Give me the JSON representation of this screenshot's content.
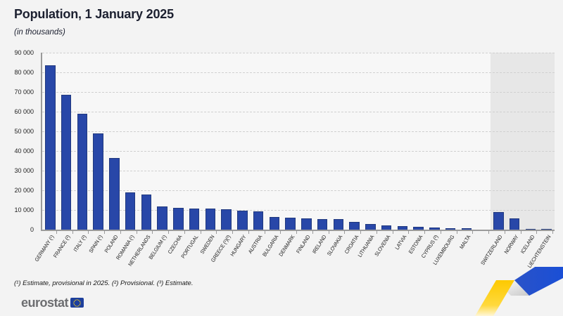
{
  "header": {
    "title": "Population, 1 January 2025",
    "subtitle": "(in thousands)"
  },
  "footnote": "(¹) Estimate, provisional in 2025. (²) Provisional. (³) Estimate.",
  "logo": {
    "text": "eurostat"
  },
  "colors": {
    "bar_fill": "#2847a8",
    "bar_border": "#21397e",
    "efta_background": "#e7e7e7",
    "gridline": "#d0d0d0",
    "axis": "#9a9a9a",
    "page_background": "#f3f3f3",
    "ribbon_yellow": "#ffd617",
    "ribbon_blue": "#1a4fd6",
    "logo_blue": "#1d3f9c",
    "logo_gray": "#6d6e71"
  },
  "chart_data": {
    "type": "bar",
    "title": "Population, 1 January 2025",
    "ylabel": "",
    "xlabel": "",
    "unit": "thousands",
    "ylim": [
      0,
      90000
    ],
    "ytick_step": 10000,
    "yticks": [
      {
        "value": 0,
        "label": "0"
      },
      {
        "value": 10000,
        "label": "10 000"
      },
      {
        "value": 20000,
        "label": "20 000"
      },
      {
        "value": 30000,
        "label": "30 000"
      },
      {
        "value": 40000,
        "label": "40 000"
      },
      {
        "value": 50000,
        "label": "50 000"
      },
      {
        "value": 60000,
        "label": "60 000"
      },
      {
        "value": 70000,
        "label": "70 000"
      },
      {
        "value": 80000,
        "label": "80 000"
      },
      {
        "value": 90000,
        "label": "90 000"
      }
    ],
    "grid": "horizontal-dashed",
    "legend": "none",
    "note": "EFTA countries shown on shaded background, separated from EU countries by an empty slot",
    "bars": [
      {
        "label": "GERMANY (¹)",
        "value": 83577,
        "group": "eu"
      },
      {
        "label": "FRANCE (²)",
        "value": 68606,
        "group": "eu"
      },
      {
        "label": "ITALY (²)",
        "value": 58934,
        "group": "eu"
      },
      {
        "label": "SPAIN (¹)",
        "value": 49078,
        "group": "eu"
      },
      {
        "label": "POLAND",
        "value": 36486,
        "group": "eu"
      },
      {
        "label": "ROMANIA (¹)",
        "value": 19055,
        "group": "eu"
      },
      {
        "label": "NETHERLANDS",
        "value": 17994,
        "group": "eu"
      },
      {
        "label": "BELGIUM (¹)",
        "value": 11858,
        "group": "eu"
      },
      {
        "label": "CZECHIA",
        "value": 10910,
        "group": "eu"
      },
      {
        "label": "PORTUGAL",
        "value": 10750,
        "group": "eu"
      },
      {
        "label": "SWEDEN",
        "value": 10587,
        "group": "eu"
      },
      {
        "label": "GREECE (¹)(³)",
        "value": 10364,
        "group": "eu"
      },
      {
        "label": "HUNGARY",
        "value": 9539,
        "group": "eu"
      },
      {
        "label": "AUSTRIA",
        "value": 9199,
        "group": "eu"
      },
      {
        "label": "BULGARIA",
        "value": 6437,
        "group": "eu"
      },
      {
        "label": "DENMARK",
        "value": 5992,
        "group": "eu"
      },
      {
        "label": "FINLAND",
        "value": 5635,
        "group": "eu"
      },
      {
        "label": "IRELAND",
        "value": 5440,
        "group": "eu"
      },
      {
        "label": "SLOVAKIA",
        "value": 5411,
        "group": "eu"
      },
      {
        "label": "CROATIA",
        "value": 3848,
        "group": "eu"
      },
      {
        "label": "LITHUANIA",
        "value": 2890,
        "group": "eu"
      },
      {
        "label": "SLOVENIA",
        "value": 2131,
        "group": "eu"
      },
      {
        "label": "LATVIA",
        "value": 1853,
        "group": "eu"
      },
      {
        "label": "ESTONIA",
        "value": 1369,
        "group": "eu"
      },
      {
        "label": "CYPRUS (³)",
        "value": 973,
        "group": "eu"
      },
      {
        "label": "LUXEMBOURG",
        "value": 681,
        "group": "eu"
      },
      {
        "label": "MALTA",
        "value": 574,
        "group": "eu"
      },
      {
        "label": "SWITZERLAND",
        "value": 9049,
        "group": "efta"
      },
      {
        "label": "NORWAY",
        "value": 5594,
        "group": "efta"
      },
      {
        "label": "ICELAND",
        "value": 389,
        "group": "efta"
      },
      {
        "label": "LIECHTENSTEIN",
        "value": 40,
        "group": "efta"
      }
    ]
  }
}
